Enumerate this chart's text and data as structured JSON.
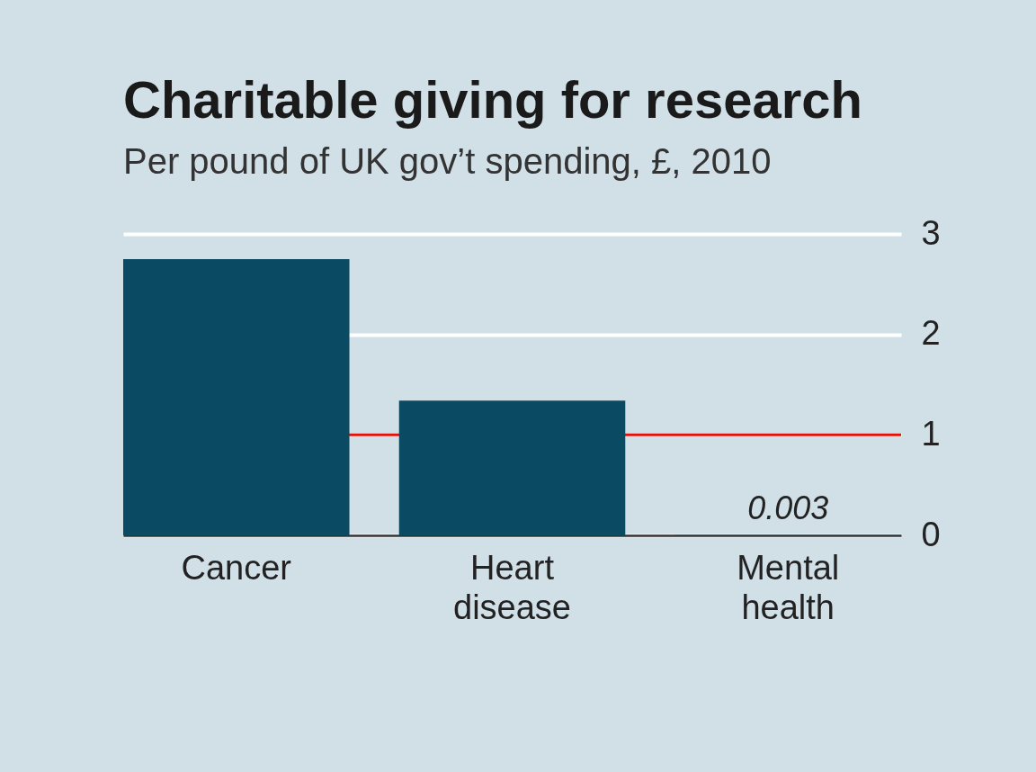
{
  "chart_data": {
    "type": "bar",
    "title": "Charitable giving for research",
    "subtitle": "Per pound of UK gov’t spending, £, 2010",
    "categories": [
      "Cancer",
      "Heart disease",
      "Mental health"
    ],
    "values": [
      2.75,
      1.34,
      0.003
    ],
    "value_labels": [
      null,
      null,
      "0.003"
    ],
    "color": "#0a4a63",
    "ylim": [
      0,
      3
    ],
    "yticks": [
      0,
      1,
      2,
      3
    ],
    "grid": "y",
    "ref_lines": [
      {
        "axis": "y",
        "value": 1,
        "color": "#e3120b"
      }
    ]
  }
}
